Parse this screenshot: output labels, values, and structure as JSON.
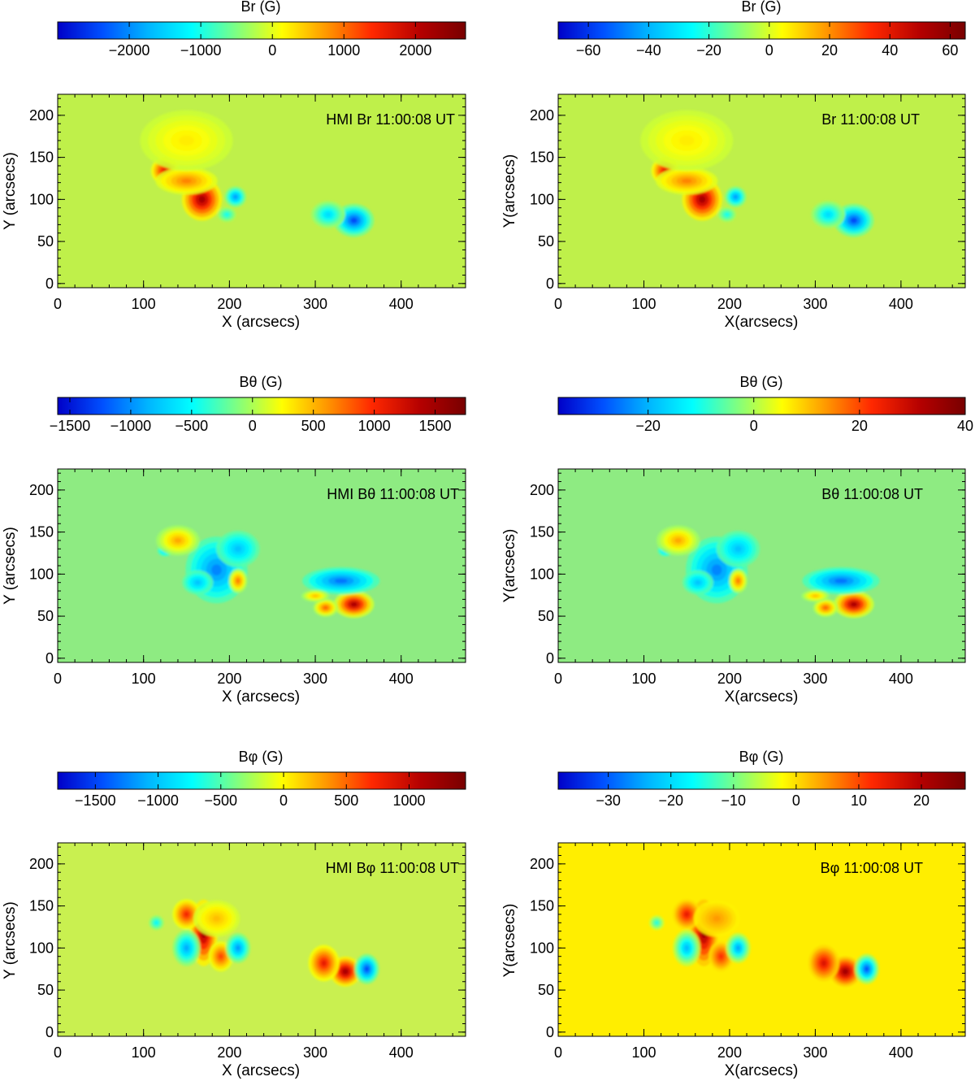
{
  "chart_data": [
    {
      "type": "heatmap",
      "colorbar": {
        "label": "Br (G)",
        "range": [
          -3000,
          2700
        ],
        "ticks": [
          -2000,
          -1000,
          0,
          1000,
          2000
        ],
        "tick_labels": [
          "−2000",
          "−1000",
          "0",
          "1000",
          "2000"
        ]
      },
      "annotation": "HMI Br 11:00:08 UT",
      "xlabel": "X (arcsecs)",
      "ylabel": "Y (arcsecs)",
      "xlim": [
        0,
        475
      ],
      "ylim": [
        -5,
        225
      ],
      "xticks": [
        0,
        100,
        200,
        300,
        400
      ],
      "yticks": [
        0,
        50,
        100,
        150,
        200
      ],
      "field": "Br",
      "blobs": [
        {
          "x": 168,
          "y": 100,
          "value": 1.0,
          "sx": 13,
          "sy": 14
        },
        {
          "x": 125,
          "y": 134,
          "value": 0.8,
          "sx": 9,
          "sy": 9
        },
        {
          "x": 150,
          "y": 122,
          "value": 0.45,
          "sx": 20,
          "sy": 9
        },
        {
          "x": 207,
          "y": 103,
          "value": -0.7,
          "sx": 7,
          "sy": 7
        },
        {
          "x": 197,
          "y": 82,
          "value": -0.35,
          "sx": 6,
          "sy": 5
        },
        {
          "x": 345,
          "y": 75,
          "value": -0.9,
          "sx": 13,
          "sy": 11
        },
        {
          "x": 315,
          "y": 82,
          "value": -0.5,
          "sx": 11,
          "sy": 9
        },
        {
          "x": 150,
          "y": 170,
          "value": 0.18,
          "sx": 30,
          "sy": 20
        }
      ]
    },
    {
      "type": "heatmap",
      "colorbar": {
        "label": "Br (G)",
        "range": [
          -70,
          65
        ],
        "ticks": [
          -60,
          -40,
          -20,
          0,
          20,
          40,
          60
        ],
        "tick_labels": [
          "−60",
          "−40",
          "−20",
          "0",
          "20",
          "40",
          "60"
        ]
      },
      "annotation": "Br 11:00:08 UT",
      "xlabel": "X(arcsecs)",
      "ylabel": "Y(arcsecs)",
      "xlim": [
        0,
        475
      ],
      "ylim": [
        -5,
        225
      ],
      "xticks": [
        0,
        100,
        200,
        300,
        400
      ],
      "yticks": [
        0,
        50,
        100,
        150,
        200
      ],
      "field": "Br",
      "blobs": [
        {
          "x": 168,
          "y": 100,
          "value": 1.0,
          "sx": 13,
          "sy": 14
        },
        {
          "x": 125,
          "y": 134,
          "value": 0.8,
          "sx": 9,
          "sy": 9
        },
        {
          "x": 150,
          "y": 122,
          "value": 0.45,
          "sx": 20,
          "sy": 9
        },
        {
          "x": 207,
          "y": 103,
          "value": -0.7,
          "sx": 7,
          "sy": 7
        },
        {
          "x": 197,
          "y": 82,
          "value": -0.35,
          "sx": 6,
          "sy": 5
        },
        {
          "x": 345,
          "y": 75,
          "value": -0.9,
          "sx": 13,
          "sy": 11
        },
        {
          "x": 315,
          "y": 82,
          "value": -0.5,
          "sx": 11,
          "sy": 9
        },
        {
          "x": 150,
          "y": 170,
          "value": 0.18,
          "sx": 30,
          "sy": 20
        }
      ]
    },
    {
      "type": "heatmap",
      "colorbar": {
        "label": "Bθ (G)",
        "range": [
          -1600,
          1750
        ],
        "ticks": [
          -1500,
          -1000,
          -500,
          0,
          500,
          1000,
          1500
        ],
        "tick_labels": [
          "−1500",
          "−1000",
          "−500",
          "0",
          "500",
          "1000",
          "1500"
        ]
      },
      "annotation": "HMI Bθ 11:00:08 UT",
      "xlabel": "X (arcsecs)",
      "ylabel": "Y (arcsecs)",
      "xlim": [
        0,
        475
      ],
      "ylim": [
        -5,
        225
      ],
      "xticks": [
        0,
        100,
        200,
        300,
        400
      ],
      "yticks": [
        0,
        50,
        100,
        150,
        200
      ],
      "field": "Btheta",
      "blobs": [
        {
          "x": 185,
          "y": 105,
          "value": -0.7,
          "sx": 20,
          "sy": 22
        },
        {
          "x": 210,
          "y": 130,
          "value": -0.5,
          "sx": 14,
          "sy": 12
        },
        {
          "x": 163,
          "y": 90,
          "value": -0.5,
          "sx": 10,
          "sy": 8
        },
        {
          "x": 125,
          "y": 128,
          "value": -0.5,
          "sx": 5,
          "sy": 4
        },
        {
          "x": 140,
          "y": 140,
          "value": 0.45,
          "sx": 14,
          "sy": 10
        },
        {
          "x": 210,
          "y": 92,
          "value": 0.55,
          "sx": 6,
          "sy": 8
        },
        {
          "x": 345,
          "y": 64,
          "value": 1.0,
          "sx": 13,
          "sy": 9
        },
        {
          "x": 312,
          "y": 60,
          "value": 0.6,
          "sx": 8,
          "sy": 6
        },
        {
          "x": 330,
          "y": 92,
          "value": -0.75,
          "sx": 25,
          "sy": 9
        },
        {
          "x": 300,
          "y": 74,
          "value": 0.4,
          "sx": 9,
          "sy": 4
        }
      ]
    },
    {
      "type": "heatmap",
      "colorbar": {
        "label": "Bθ (G)",
        "range": [
          -37,
          40
        ],
        "ticks": [
          -20,
          0,
          20,
          40
        ],
        "tick_labels": [
          "−20",
          "0",
          "20",
          "40"
        ]
      },
      "annotation": "Bθ 11:00:08 UT",
      "xlabel": "X(arcsecs)",
      "ylabel": "Y(arcsecs)",
      "xlim": [
        0,
        475
      ],
      "ylim": [
        -5,
        225
      ],
      "xticks": [
        0,
        100,
        200,
        300,
        400
      ],
      "yticks": [
        0,
        50,
        100,
        150,
        200
      ],
      "field": "Btheta",
      "blobs": [
        {
          "x": 185,
          "y": 105,
          "value": -0.7,
          "sx": 20,
          "sy": 22
        },
        {
          "x": 210,
          "y": 130,
          "value": -0.5,
          "sx": 14,
          "sy": 12
        },
        {
          "x": 163,
          "y": 90,
          "value": -0.5,
          "sx": 10,
          "sy": 8
        },
        {
          "x": 125,
          "y": 128,
          "value": -0.5,
          "sx": 5,
          "sy": 4
        },
        {
          "x": 140,
          "y": 140,
          "value": 0.45,
          "sx": 14,
          "sy": 10
        },
        {
          "x": 210,
          "y": 92,
          "value": 0.55,
          "sx": 6,
          "sy": 8
        },
        {
          "x": 345,
          "y": 64,
          "value": 1.0,
          "sx": 13,
          "sy": 9
        },
        {
          "x": 312,
          "y": 60,
          "value": 0.6,
          "sx": 8,
          "sy": 6
        },
        {
          "x": 330,
          "y": 92,
          "value": -0.75,
          "sx": 25,
          "sy": 9
        },
        {
          "x": 300,
          "y": 74,
          "value": 0.4,
          "sx": 9,
          "sy": 4
        }
      ]
    },
    {
      "type": "heatmap",
      "colorbar": {
        "label": "Bφ (G)",
        "range": [
          -1800,
          1450
        ],
        "ticks": [
          -1500,
          -1000,
          -500,
          0,
          500,
          1000
        ],
        "tick_labels": [
          "−1500",
          "−1000",
          "−500",
          "0",
          "500",
          "1000"
        ]
      },
      "annotation": "HMI Bφ 11:00:08 UT",
      "xlabel": "X (arcsecs)",
      "ylabel": "Y (arcsecs)",
      "xlim": [
        0,
        475
      ],
      "ylim": [
        -5,
        225
      ],
      "xticks": [
        0,
        100,
        200,
        300,
        400
      ],
      "yticks": [
        0,
        50,
        100,
        150,
        200
      ],
      "field": "Bphi",
      "blobs": [
        {
          "x": 170,
          "y": 118,
          "value": 1.0,
          "sx": 9,
          "sy": 22
        },
        {
          "x": 150,
          "y": 140,
          "value": 0.7,
          "sx": 9,
          "sy": 10
        },
        {
          "x": 190,
          "y": 90,
          "value": 0.6,
          "sx": 8,
          "sy": 10
        },
        {
          "x": 185,
          "y": 135,
          "value": 0.3,
          "sx": 15,
          "sy": 12
        },
        {
          "x": 150,
          "y": 100,
          "value": -0.65,
          "sx": 9,
          "sy": 12
        },
        {
          "x": 210,
          "y": 100,
          "value": -0.7,
          "sx": 8,
          "sy": 10
        },
        {
          "x": 115,
          "y": 130,
          "value": -0.4,
          "sx": 5,
          "sy": 5
        },
        {
          "x": 335,
          "y": 72,
          "value": 1.0,
          "sx": 10,
          "sy": 10
        },
        {
          "x": 310,
          "y": 82,
          "value": 0.75,
          "sx": 10,
          "sy": 12
        },
        {
          "x": 360,
          "y": 75,
          "value": -0.9,
          "sx": 8,
          "sy": 10
        }
      ]
    },
    {
      "type": "heatmap",
      "colorbar": {
        "label": "Bφ (G)",
        "range": [
          -38,
          27
        ],
        "ticks": [
          -30,
          -20,
          -10,
          0,
          10,
          20
        ],
        "tick_labels": [
          "−30",
          "−20",
          "−10",
          "0",
          "10",
          "20"
        ]
      },
      "annotation": "Bφ 11:00:08 UT",
      "xlabel": "X(arcsecs)",
      "ylabel": "Y(arcsecs)",
      "xlim": [
        0,
        475
      ],
      "ylim": [
        -5,
        225
      ],
      "xticks": [
        0,
        100,
        200,
        300,
        400
      ],
      "yticks": [
        0,
        50,
        100,
        150,
        200
      ],
      "field": "Bphi",
      "blobs": [
        {
          "x": 170,
          "y": 118,
          "value": 1.0,
          "sx": 9,
          "sy": 22
        },
        {
          "x": 150,
          "y": 140,
          "value": 0.7,
          "sx": 9,
          "sy": 10
        },
        {
          "x": 190,
          "y": 90,
          "value": 0.6,
          "sx": 8,
          "sy": 10
        },
        {
          "x": 185,
          "y": 135,
          "value": 0.3,
          "sx": 15,
          "sy": 12
        },
        {
          "x": 150,
          "y": 100,
          "value": -0.65,
          "sx": 9,
          "sy": 12
        },
        {
          "x": 210,
          "y": 100,
          "value": -0.7,
          "sx": 8,
          "sy": 10
        },
        {
          "x": 115,
          "y": 130,
          "value": -0.4,
          "sx": 5,
          "sy": 5
        },
        {
          "x": 335,
          "y": 72,
          "value": 1.0,
          "sx": 10,
          "sy": 10
        },
        {
          "x": 310,
          "y": 82,
          "value": 0.75,
          "sx": 10,
          "sy": 12
        },
        {
          "x": 360,
          "y": 75,
          "value": -0.9,
          "sx": 8,
          "sy": 10
        }
      ]
    }
  ],
  "background_colors": {
    "Br": "#bff04a",
    "Btheta": "#8eeb82",
    "Bphi_hmi": "#c9f050",
    "Bphi_model": "#ffee00"
  },
  "colormap": [
    "#0000c8",
    "#0050ff",
    "#00b4ff",
    "#00ffff",
    "#80ff80",
    "#ffff00",
    "#ff9600",
    "#ff2800",
    "#b40000",
    "#780000"
  ]
}
